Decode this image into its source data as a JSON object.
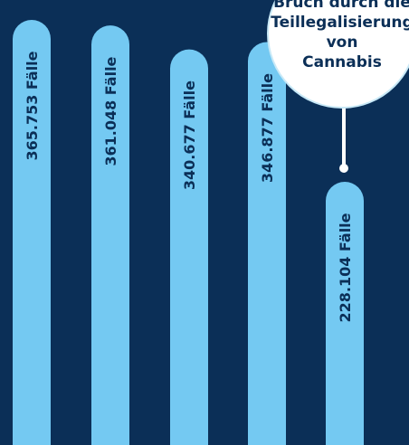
{
  "chart_data": {
    "type": "bar",
    "categories": [
      "",
      "",
      "",
      "",
      ""
    ],
    "values": [
      365753,
      361048,
      340677,
      346877,
      228104
    ],
    "data_labels": [
      "365.753 Fälle",
      "361.048 Fälle",
      "340.677 Fälle",
      "346.877 Fälle",
      "228.104 Fälle"
    ],
    "annotation": {
      "text_lines": [
        "Bruch durch die",
        "Teillegalisierung",
        "von",
        "Cannabis"
      ],
      "target_index": 4
    },
    "colors": {
      "background": "#0b2f57",
      "bar": "#74c9f2",
      "label": "#0b2f57",
      "callout_fill": "#ffffff",
      "callout_text": "#0b2f57",
      "callout_stroke": "#ffffff"
    }
  }
}
